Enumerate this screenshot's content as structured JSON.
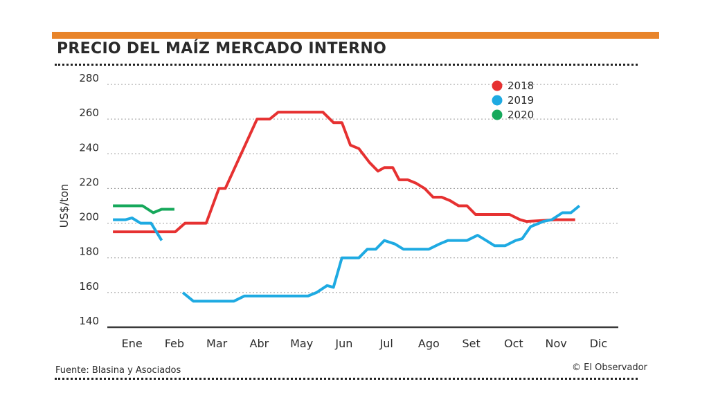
{
  "header": {
    "title": "PRECIO DEL MAÍZ MERCADO INTERNO",
    "accent_color": "#e8842a"
  },
  "footer": {
    "source": "Fuente: Blasina y Asociados",
    "credit": "© El Observador"
  },
  "chart_data": {
    "type": "line",
    "title": "PRECIO DEL MAÍZ MERCADO INTERNO",
    "xlabel": "",
    "ylabel": "US$/ton",
    "ylim": [
      140,
      280
    ],
    "yticks": [
      140,
      160,
      180,
      200,
      220,
      240,
      260,
      280
    ],
    "xlim": [
      0,
      12
    ],
    "categories": [
      "Ene",
      "Feb",
      "Mar",
      "Abr",
      "May",
      "Jun",
      "Jul",
      "Ago",
      "Set",
      "Oct",
      "Nov",
      "Dic"
    ],
    "grid": true,
    "legend": "top-right",
    "series": [
      {
        "name": "2018",
        "color": "#e63131",
        "segments": [
          [
            [
              0.05,
              195
            ],
            [
              1.52,
              195
            ],
            [
              1.75,
              200
            ],
            [
              2.25,
              200
            ],
            [
              2.55,
              220
            ],
            [
              2.7,
              220
            ],
            [
              3.45,
              260
            ],
            [
              3.75,
              260
            ],
            [
              3.95,
              264
            ],
            [
              4.55,
              264
            ],
            [
              5.0,
              264
            ],
            [
              5.25,
              258
            ],
            [
              5.45,
              258
            ],
            [
              5.65,
              245
            ],
            [
              5.85,
              243
            ],
            [
              6.1,
              235
            ],
            [
              6.3,
              230
            ],
            [
              6.45,
              232
            ],
            [
              6.65,
              232
            ],
            [
              6.8,
              225
            ],
            [
              7.0,
              225
            ],
            [
              7.2,
              223
            ],
            [
              7.4,
              220
            ],
            [
              7.6,
              215
            ],
            [
              7.8,
              215
            ],
            [
              8.0,
              213
            ],
            [
              8.2,
              210
            ],
            [
              8.4,
              210
            ],
            [
              8.6,
              205
            ],
            [
              8.9,
              205
            ],
            [
              9.4,
              205
            ],
            [
              9.65,
              202
            ],
            [
              9.8,
              201
            ],
            [
              10.5,
              202
            ],
            [
              10.95,
              202
            ]
          ]
        ]
      },
      {
        "name": "2019",
        "color": "#1eaae2",
        "segments": [
          [
            [
              0.05,
              202
            ],
            [
              0.35,
              202
            ],
            [
              0.5,
              203
            ],
            [
              0.7,
              200
            ],
            [
              0.95,
              200
            ],
            [
              1.2,
              190
            ]
          ],
          [
            [
              1.7,
              160
            ],
            [
              1.95,
              155
            ],
            [
              2.1,
              155
            ],
            [
              2.9,
              155
            ],
            [
              3.15,
              158
            ],
            [
              3.5,
              158
            ],
            [
              4.4,
              158
            ],
            [
              4.65,
              158
            ],
            [
              4.85,
              160
            ],
            [
              5.1,
              164
            ],
            [
              5.25,
              163
            ],
            [
              5.45,
              180
            ],
            [
              5.85,
              180
            ],
            [
              6.05,
              185
            ],
            [
              6.25,
              185
            ],
            [
              6.45,
              190
            ],
            [
              6.7,
              188
            ],
            [
              6.9,
              185
            ],
            [
              7.1,
              185
            ],
            [
              7.5,
              185
            ],
            [
              7.75,
              188
            ],
            [
              7.95,
              190
            ],
            [
              8.4,
              190
            ],
            [
              8.65,
              193
            ],
            [
              8.85,
              190
            ],
            [
              9.05,
              187
            ],
            [
              9.3,
              187
            ],
            [
              9.55,
              190
            ],
            [
              9.7,
              191
            ],
            [
              9.9,
              198
            ],
            [
              10.2,
              201
            ],
            [
              10.4,
              202
            ],
            [
              10.65,
              206
            ],
            [
              10.85,
              206
            ],
            [
              11.05,
              210
            ]
          ]
        ]
      },
      {
        "name": "2020",
        "color": "#16a85b",
        "segments": [
          [
            [
              0.05,
              210
            ],
            [
              0.75,
              210
            ],
            [
              1.0,
              206
            ],
            [
              1.2,
              208
            ],
            [
              1.5,
              208
            ]
          ]
        ]
      }
    ]
  }
}
